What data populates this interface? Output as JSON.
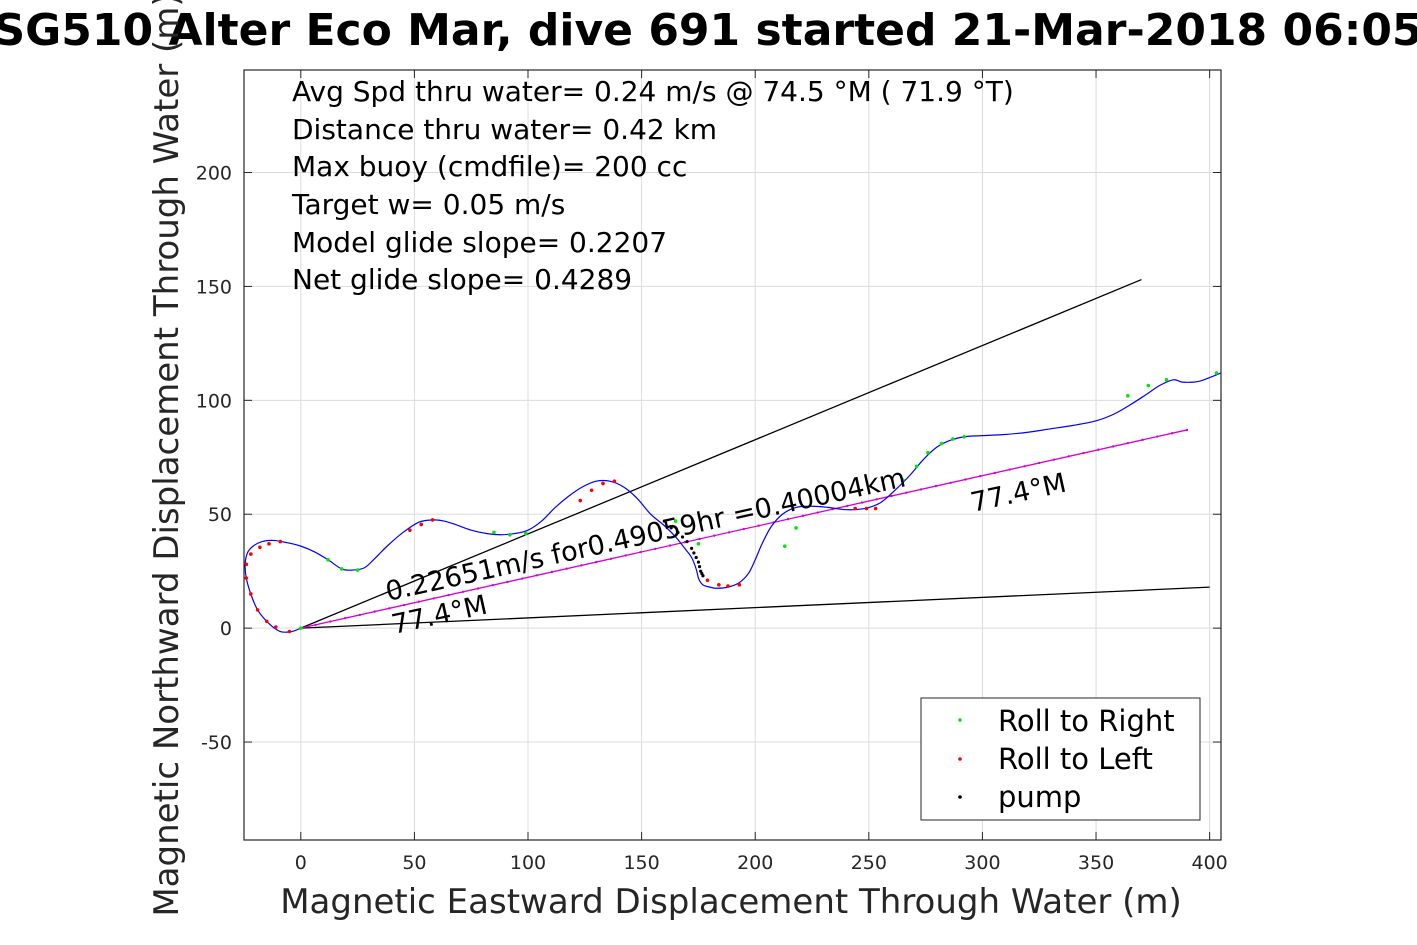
{
  "chart_data": {
    "type": "line",
    "title": "SG510 Alter Eco Mar, dive 691 started 21-Mar-2018 06:05",
    "xlabel": "Magnetic Eastward Displacement Through Water (m)",
    "ylabel": "Magnetic Northward Displacement Through Water (m)",
    "xlim": [
      -25,
      405
    ],
    "ylim": [
      -93,
      245
    ],
    "xticks": [
      0,
      50,
      100,
      150,
      200,
      250,
      300,
      350,
      400
    ],
    "yticks": [
      -50,
      0,
      50,
      100,
      150,
      200
    ],
    "grid": true,
    "stats": [
      "Avg Spd thru water=  0.24 m/s @  74.5 °M ( 71.9 °T)",
      "Distance thru water=  0.42 km",
      "Max buoy (cmdfile)= 200 cc",
      "Target w= 0.05 m/s",
      "Model glide slope= 0.2207",
      "Net glide slope= 0.4289"
    ],
    "annotations": {
      "segment_label": "0.22651m/s for0.49059hr =0.40004km",
      "heading_start": "77.4°M",
      "heading_end": "77.4°M"
    },
    "path": {
      "name": "track",
      "color": "#0000ff",
      "x": [
        0,
        -4,
        -9,
        -14,
        -19,
        -22,
        -24,
        -24.5,
        -23.5,
        -21,
        -17,
        -12,
        -6,
        0,
        6,
        12,
        18,
        23,
        28,
        32,
        38,
        45,
        52,
        58,
        63,
        68,
        75,
        82,
        88,
        94,
        100,
        106,
        112,
        118,
        124,
        130,
        136,
        142,
        148,
        154,
        160,
        165,
        169,
        172,
        174,
        175,
        176,
        177,
        178,
        180,
        183,
        188,
        193,
        197,
        200,
        203,
        207,
        212,
        218,
        225,
        232,
        240,
        248,
        255,
        262,
        268,
        274,
        280,
        286,
        292,
        300,
        310,
        320,
        330,
        340,
        350,
        358,
        365,
        372,
        378,
        384,
        388,
        393,
        396,
        400,
        405
      ],
      "y": [
        0,
        -1.5,
        -1.5,
        2,
        8,
        15,
        22,
        28,
        33,
        36,
        38,
        38.5,
        37.5,
        36,
        33.5,
        30,
        26,
        25.5,
        26.5,
        30,
        36,
        42,
        46.5,
        47.5,
        47,
        45.5,
        43,
        41.5,
        41,
        41.5,
        43,
        47,
        53,
        58,
        62,
        64.5,
        64.5,
        62,
        57,
        50,
        45,
        40,
        35,
        31,
        26,
        22,
        20,
        19,
        18.5,
        18,
        17.5,
        18,
        20,
        24,
        30,
        37,
        44.5,
        50,
        53,
        53.5,
        53,
        52,
        52.5,
        55,
        61,
        67,
        74,
        79.5,
        82.5,
        84,
        84.5,
        85,
        86,
        87.5,
        89,
        91,
        94,
        98,
        102.5,
        106.5,
        109,
        108,
        108,
        108.5,
        110,
        112
      ]
    },
    "reference_lines": [
      {
        "name": "glide slope upper",
        "color": "#000000",
        "x": [
          0,
          370
        ],
        "y": [
          0,
          153
        ]
      },
      {
        "name": "glide slope lower",
        "color": "#000000",
        "x": [
          0,
          400
        ],
        "y": [
          0,
          18
        ]
      },
      {
        "name": "net heading",
        "color": "#d400d4",
        "x": [
          0,
          390
        ],
        "y": [
          0,
          87
        ]
      }
    ],
    "markers": {
      "roll_right": {
        "color": "#00e600",
        "x": [
          0,
          12,
          18,
          25,
          85,
          92,
          99,
          165,
          175,
          213,
          218,
          265,
          271,
          276,
          282,
          287,
          292,
          364,
          373,
          381,
          403
        ],
        "y": [
          0,
          30,
          26,
          25.5,
          42,
          41,
          41.5,
          47,
          37,
          36,
          44,
          65,
          71,
          77,
          81,
          83,
          84,
          102,
          106.5,
          109,
          112
        ]
      },
      "roll_left": {
        "color": "#ff0000",
        "x": [
          -5,
          -11,
          -15,
          -19,
          -22,
          -24,
          -24,
          -22,
          -18,
          -14,
          -9,
          48,
          53,
          58,
          123,
          128,
          133,
          138,
          179,
          184,
          188,
          193,
          244,
          249,
          253
        ],
        "y": [
          -1.5,
          0.5,
          3,
          8,
          15,
          22,
          28,
          32.5,
          35.5,
          37,
          38,
          43,
          45.5,
          47.5,
          56,
          60.5,
          63.5,
          64.5,
          21,
          19,
          18.5,
          19,
          52.5,
          52.5,
          52.5
        ]
      },
      "pump": {
        "color": "#000000",
        "x": [
          160,
          163,
          166,
          168,
          170,
          172,
          173,
          174,
          175,
          175.5,
          176,
          176.5,
          177
        ],
        "y": [
          47,
          44,
          42,
          40,
          38,
          35,
          33,
          31,
          29,
          27,
          25,
          24,
          23
        ]
      }
    },
    "legend": {
      "position": "bottom-right",
      "entries": [
        {
          "label": "Roll to Right",
          "color": "#00e600"
        },
        {
          "label": "Roll to Left",
          "color": "#ff0000"
        },
        {
          "label": "pump",
          "color": "#000000"
        }
      ]
    }
  }
}
